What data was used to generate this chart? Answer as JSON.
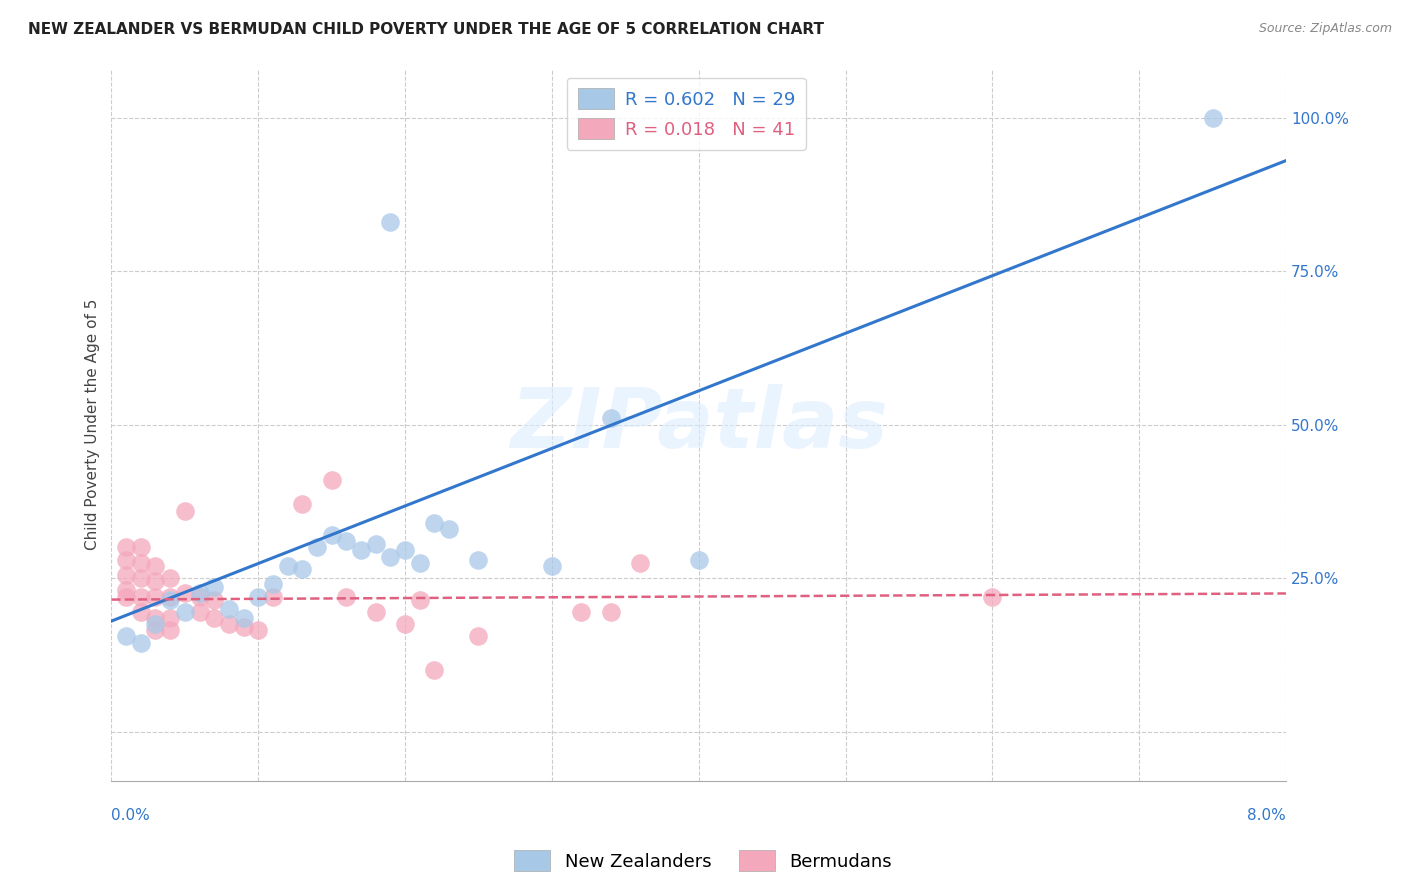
{
  "title": "NEW ZEALANDER VS BERMUDAN CHILD POVERTY UNDER THE AGE OF 5 CORRELATION CHART",
  "source": "Source: ZipAtlas.com",
  "ylabel": "Child Poverty Under the Age of 5",
  "xmin": 0.0,
  "xmax": 0.08,
  "ymin": -0.08,
  "ymax": 1.08,
  "yticks": [
    0.0,
    0.25,
    0.5,
    0.75,
    1.0
  ],
  "ytick_labels": [
    "",
    "25.0%",
    "50.0%",
    "75.0%",
    "100.0%"
  ],
  "nz_color": "#a8c8e8",
  "bermuda_color": "#f4a8bc",
  "nz_line_color": "#3377cc",
  "bermuda_line_color": "#e06080",
  "legend_nz_label": "R = 0.602   N = 29",
  "legend_bermuda_label": "R = 0.018   N = 41",
  "watermark": "ZIPatlas",
  "nz_points": [
    [
      0.001,
      0.155
    ],
    [
      0.002,
      0.145
    ],
    [
      0.003,
      0.175
    ],
    [
      0.004,
      0.215
    ],
    [
      0.005,
      0.195
    ],
    [
      0.006,
      0.225
    ],
    [
      0.007,
      0.235
    ],
    [
      0.008,
      0.2
    ],
    [
      0.009,
      0.185
    ],
    [
      0.01,
      0.22
    ],
    [
      0.011,
      0.24
    ],
    [
      0.012,
      0.27
    ],
    [
      0.013,
      0.265
    ],
    [
      0.014,
      0.3
    ],
    [
      0.015,
      0.32
    ],
    [
      0.016,
      0.31
    ],
    [
      0.017,
      0.295
    ],
    [
      0.018,
      0.305
    ],
    [
      0.019,
      0.285
    ],
    [
      0.02,
      0.295
    ],
    [
      0.021,
      0.275
    ],
    [
      0.022,
      0.34
    ],
    [
      0.023,
      0.33
    ],
    [
      0.025,
      0.28
    ],
    [
      0.03,
      0.27
    ],
    [
      0.034,
      0.51
    ],
    [
      0.04,
      0.28
    ],
    [
      0.019,
      0.83
    ],
    [
      0.075,
      1.0
    ]
  ],
  "bermuda_points": [
    [
      0.001,
      0.3
    ],
    [
      0.001,
      0.28
    ],
    [
      0.001,
      0.255
    ],
    [
      0.001,
      0.23
    ],
    [
      0.001,
      0.22
    ],
    [
      0.002,
      0.3
    ],
    [
      0.002,
      0.275
    ],
    [
      0.002,
      0.25
    ],
    [
      0.002,
      0.22
    ],
    [
      0.002,
      0.195
    ],
    [
      0.003,
      0.27
    ],
    [
      0.003,
      0.245
    ],
    [
      0.003,
      0.22
    ],
    [
      0.003,
      0.185
    ],
    [
      0.003,
      0.165
    ],
    [
      0.004,
      0.25
    ],
    [
      0.004,
      0.22
    ],
    [
      0.004,
      0.185
    ],
    [
      0.004,
      0.165
    ],
    [
      0.005,
      0.36
    ],
    [
      0.005,
      0.225
    ],
    [
      0.006,
      0.22
    ],
    [
      0.006,
      0.195
    ],
    [
      0.007,
      0.215
    ],
    [
      0.007,
      0.185
    ],
    [
      0.008,
      0.175
    ],
    [
      0.009,
      0.17
    ],
    [
      0.01,
      0.165
    ],
    [
      0.011,
      0.22
    ],
    [
      0.013,
      0.37
    ],
    [
      0.015,
      0.41
    ],
    [
      0.016,
      0.22
    ],
    [
      0.018,
      0.195
    ],
    [
      0.02,
      0.175
    ],
    [
      0.021,
      0.215
    ],
    [
      0.022,
      0.1
    ],
    [
      0.025,
      0.155
    ],
    [
      0.032,
      0.195
    ],
    [
      0.034,
      0.195
    ],
    [
      0.036,
      0.275
    ],
    [
      0.06,
      0.22
    ]
  ],
  "nz_line_x": [
    0.0,
    0.08
  ],
  "nz_line_y": [
    0.18,
    0.93
  ],
  "bermuda_line_x": [
    0.0,
    0.08
  ],
  "bermuda_line_y": [
    0.215,
    0.225
  ],
  "title_fontsize": 11,
  "axis_label_fontsize": 11,
  "tick_fontsize": 11,
  "legend_fontsize": 13
}
